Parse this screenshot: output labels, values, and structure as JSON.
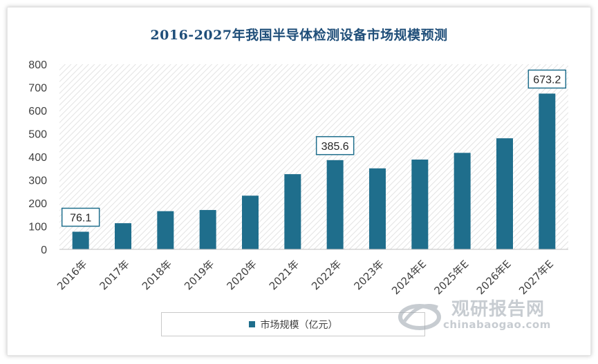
{
  "chart_data": {
    "type": "bar",
    "title": "2016-2027年我国半导体检测设备市场规模预测",
    "categories": [
      "2016年",
      "2017年",
      "2018年",
      "2019年",
      "2020年",
      "2021年",
      "2022年",
      "2023年",
      "2024年E",
      "2025年E",
      "2026年E",
      "2027年E"
    ],
    "series": [
      {
        "name": "市场规模（亿元）",
        "values": [
          76.1,
          113,
          165,
          170,
          232,
          325,
          385.6,
          350,
          388,
          417,
          480,
          673.2
        ]
      }
    ],
    "data_labels": [
      "76.1",
      "385.6",
      "673.2"
    ],
    "data_label_indices": [
      0,
      6,
      11
    ],
    "y_ticks": [
      "800",
      "700",
      "600",
      "500",
      "400",
      "300",
      "200",
      "100",
      "0"
    ],
    "ylim": [
      0,
      800
    ],
    "xlabel": "",
    "ylabel": "",
    "legend_position": "bottom",
    "bar_color": "#1f6e8c"
  },
  "watermark": {
    "name_cn": "观研报告网",
    "domain": "chinabaogao.com"
  }
}
